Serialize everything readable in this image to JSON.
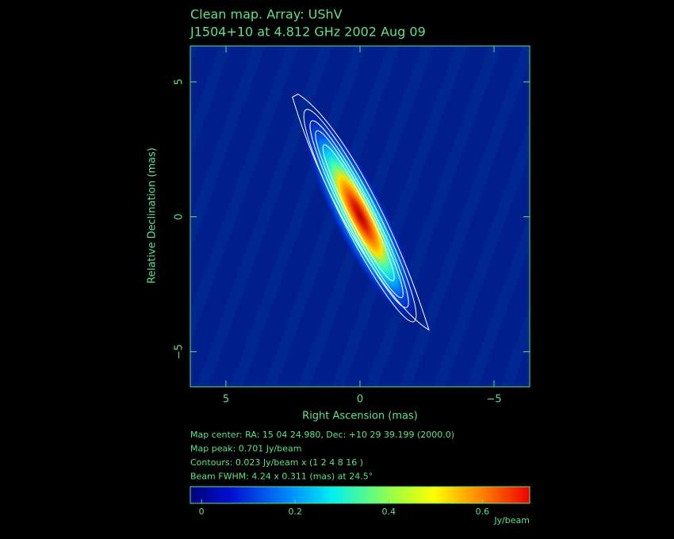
{
  "chart_data": {
    "type": "heatmap",
    "title": "Clean map.  Array: UShV",
    "subtitle": "J1504+10 at 4.812 GHz 2002 Aug 09",
    "xlabel": "Right Ascension  (mas)",
    "ylabel": "Relative Declination  (mas)",
    "xlim": [
      6.33,
      -6.33
    ],
    "ylim": [
      -6.3,
      6.33
    ],
    "xticks": [
      5,
      0,
      {
        "value": -5,
        "label": "−5"
      }
    ],
    "yticks": [
      5,
      0,
      {
        "value": -5,
        "label": "−5"
      }
    ],
    "notes": [
      "Map center:  RA: 15 04 24.980,  Dec: +10 29 39.199 (2000.0)",
      "Map peak: 0.701 Jy/beam",
      "Contours: 0.023 Jy/beam x (1 2 4 8 16 )",
      "Beam FWHM: 4.24 x 0.311 (mas) at 24.5°"
    ],
    "colorbar": {
      "label": "Jy/beam",
      "lim": [
        -0.024,
        0.701
      ],
      "ticks": [
        0,
        0.2,
        0.4,
        0.6
      ]
    }
  }
}
